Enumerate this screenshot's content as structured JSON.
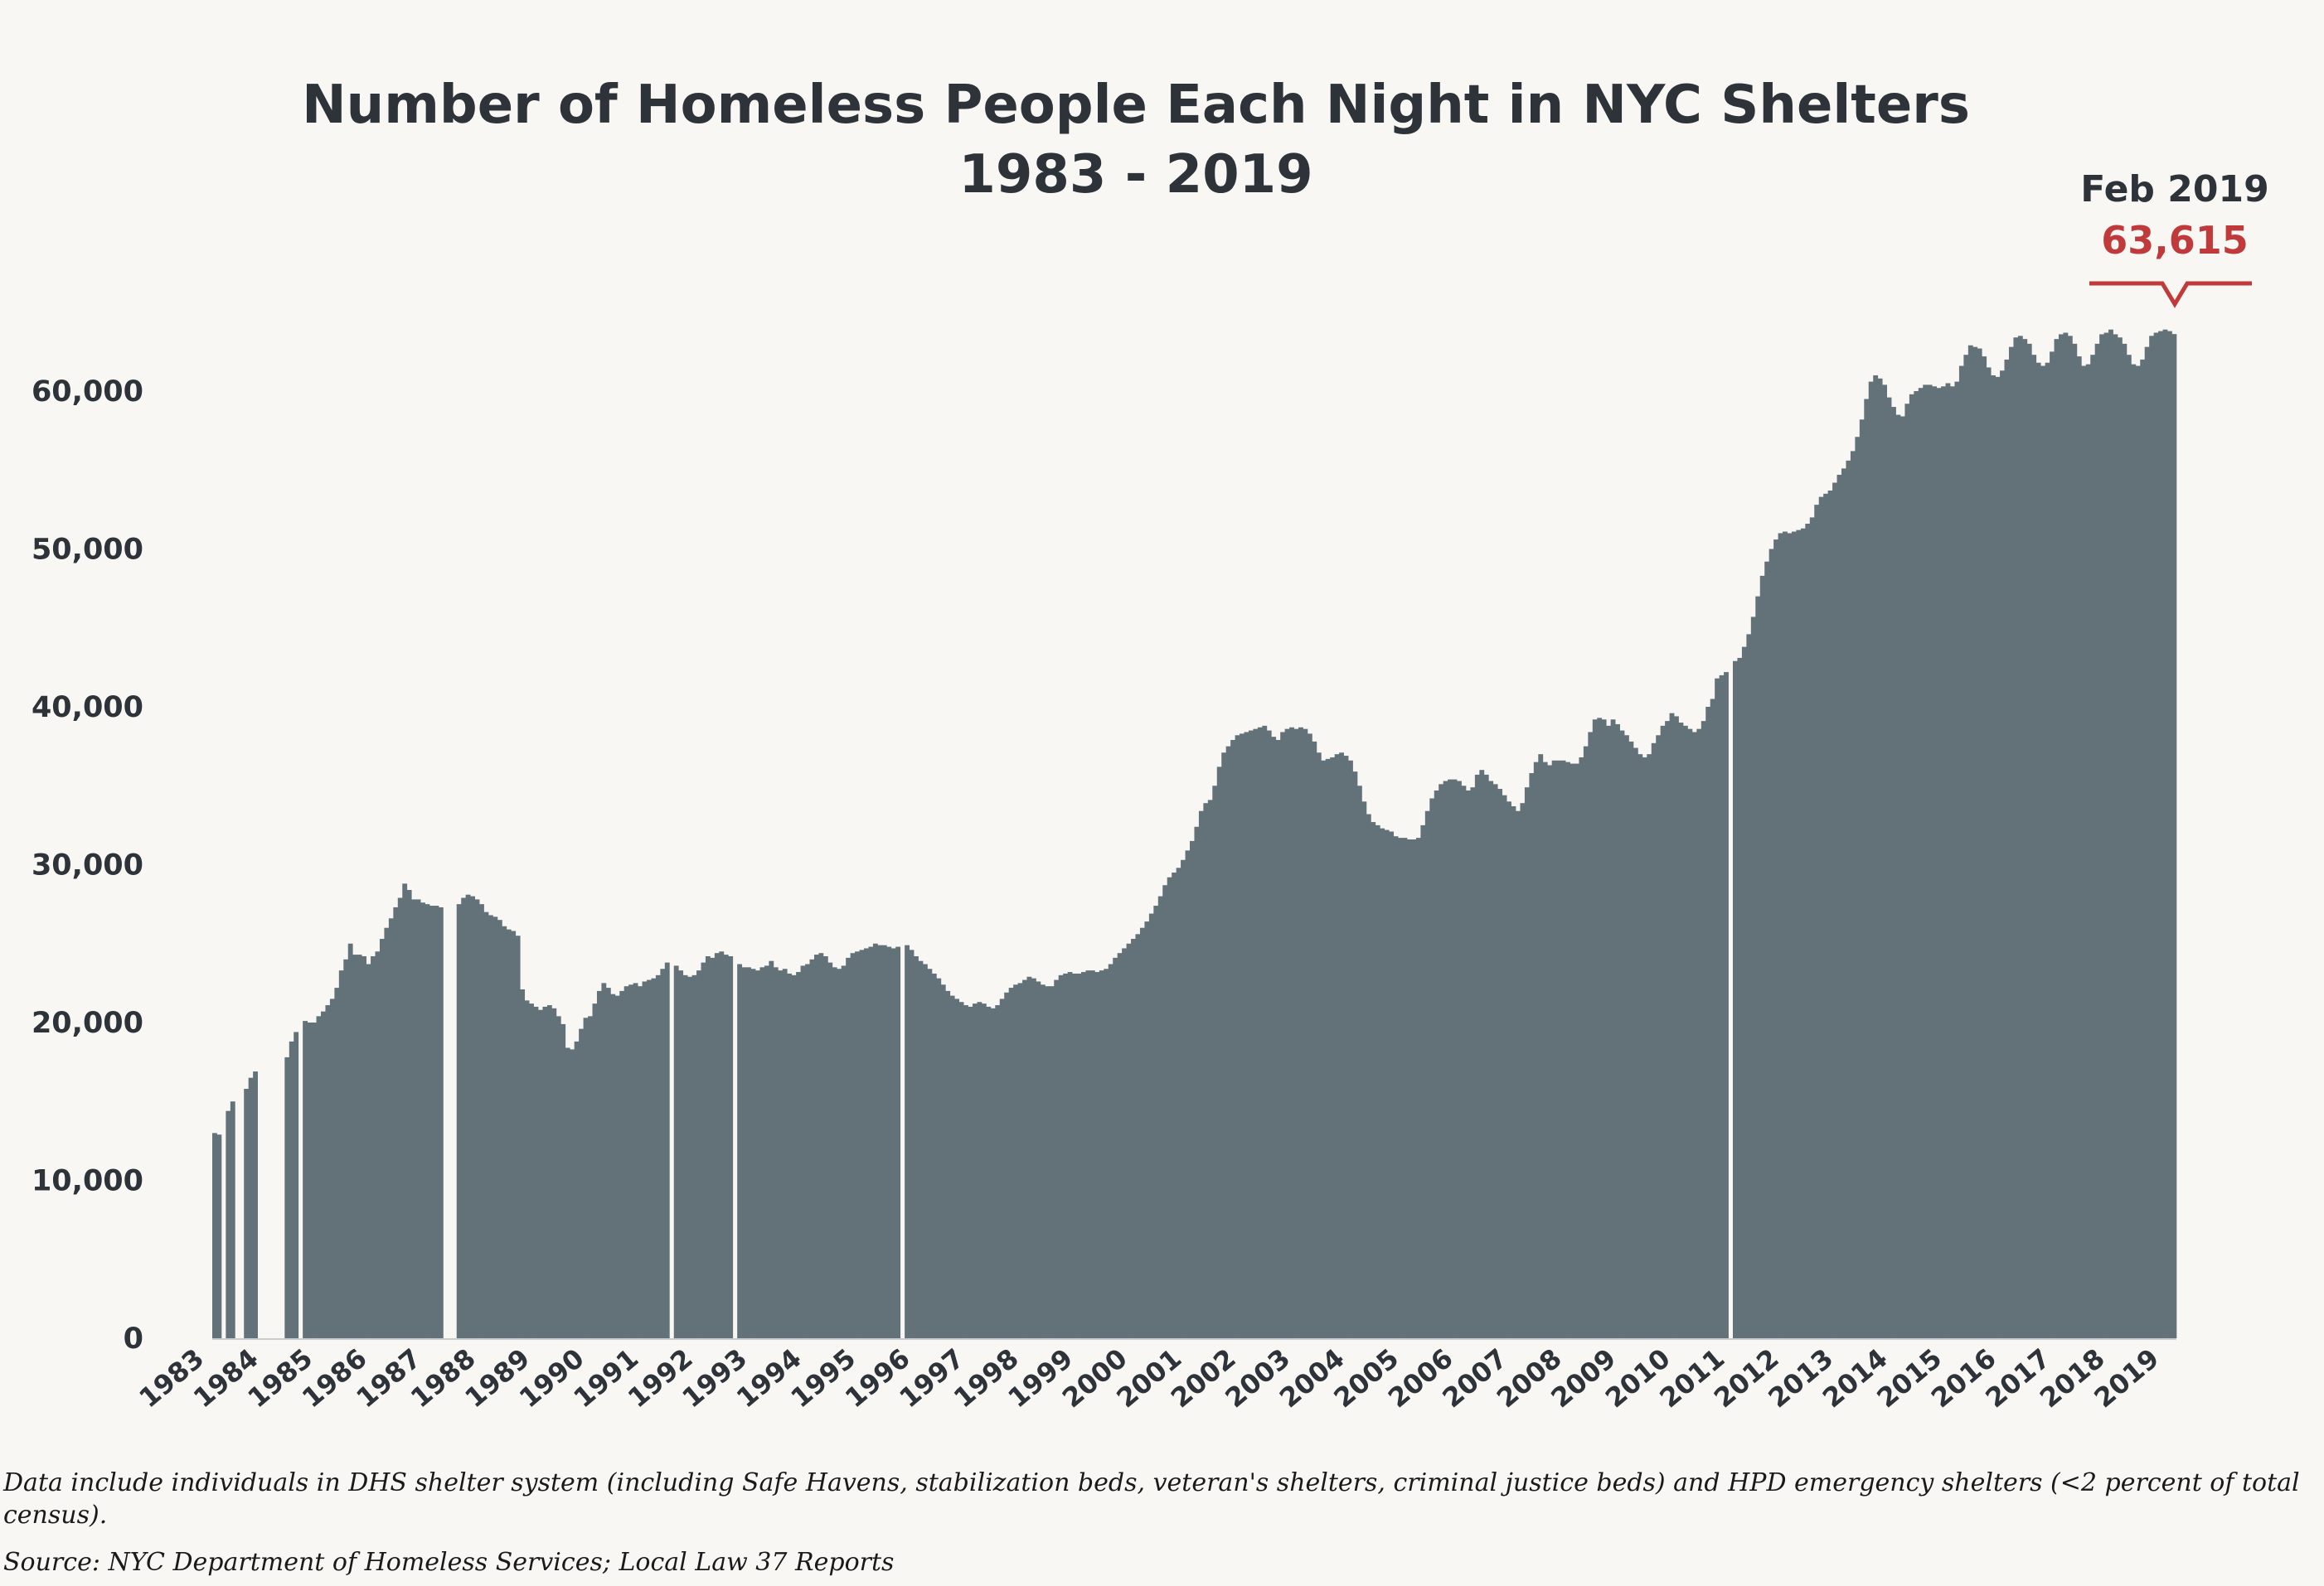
{
  "chart_data": {
    "type": "bar",
    "title": "Number of Homeless People Each Night in NYC Shelters",
    "subtitle": "1983 - 2019",
    "xlabel": "",
    "ylabel": "",
    "ylim": [
      0,
      65000
    ],
    "yticks": [
      0,
      10000,
      20000,
      30000,
      40000,
      50000,
      60000
    ],
    "ytick_labels": [
      "0",
      "10,000",
      "20,000",
      "30,000",
      "40,000",
      "50,000",
      "60,000"
    ],
    "xtick_labels": [
      "1983",
      "1984",
      "1985",
      "1986",
      "1987",
      "1988",
      "1989",
      "1990",
      "1991",
      "1992",
      "1993",
      "1994",
      "1995",
      "1996",
      "1997",
      "1998",
      "1999",
      "2000",
      "2001",
      "2002",
      "2003",
      "2004",
      "2005",
      "2006",
      "2007",
      "2008",
      "2009",
      "2010",
      "2011",
      "2012",
      "2013",
      "2014",
      "2015",
      "2016",
      "2017",
      "2018",
      "2019"
    ],
    "grid": false,
    "bar_color": "#637279",
    "frequency": "monthly",
    "monthly_values": {
      "1983": [
        13000,
        12900,
        null,
        14400,
        15000,
        null,
        null,
        15800,
        16500,
        16900,
        null,
        null
      ],
      "1984": [
        null,
        null,
        null,
        null,
        17800,
        18800,
        19400,
        null,
        20100,
        20000,
        20000,
        20400
      ],
      "1985": [
        20700,
        21100,
        21500,
        22200,
        23300,
        24000,
        25000,
        24300,
        24300,
        24200,
        23700,
        24200
      ],
      "1986": [
        24500,
        25300,
        26000,
        26600,
        27300,
        27900,
        28800,
        28400,
        27800,
        27800,
        27600,
        27500
      ],
      "1987": [
        27400,
        27400,
        27300,
        null,
        null,
        null,
        27500,
        27900,
        28100,
        28000,
        27800,
        27500
      ],
      "1988": [
        27000,
        26800,
        26700,
        26500,
        26100,
        25900,
        25800,
        25500,
        22100,
        21400,
        21200,
        21000
      ],
      "1989": [
        20800,
        21000,
        21100,
        20900,
        20400,
        19900,
        18400,
        18300,
        18800,
        19600,
        20300,
        20400
      ],
      "1990": [
        21200,
        22000,
        22500,
        22200,
        21800,
        21700,
        22000,
        22300,
        22400,
        22500,
        22300,
        22600
      ],
      "1991": [
        22700,
        22800,
        23000,
        23400,
        23800,
        null,
        23600,
        23300,
        23000,
        22900,
        23000,
        23300
      ],
      "1992": [
        23800,
        24200,
        24100,
        24400,
        24500,
        24300,
        24200,
        null,
        23700,
        23500,
        23500,
        23400
      ],
      "1993": [
        23300,
        23500,
        23600,
        23900,
        23500,
        23300,
        23400,
        23100,
        23000,
        23200,
        23600,
        23700
      ],
      "1994": [
        24000,
        24300,
        24400,
        24200,
        23800,
        23500,
        23400,
        23600,
        24100,
        24400,
        24500,
        24600
      ],
      "1995": [
        24700,
        24800,
        25000,
        24900,
        24900,
        24800,
        24700,
        24800,
        null,
        24900,
        24600,
        24200
      ],
      "1996": [
        23900,
        23700,
        23400,
        23100,
        22800,
        22400,
        22000,
        21700,
        21500,
        21300,
        21100,
        21000
      ],
      "1997": [
        21200,
        21300,
        21200,
        21000,
        20900,
        21100,
        21500,
        21900,
        22200,
        22400,
        22500,
        22700
      ],
      "1998": [
        22900,
        22800,
        22600,
        22400,
        22300,
        22300,
        22700,
        23000,
        23100,
        23200,
        23100,
        23100
      ],
      "1999": [
        23200,
        23300,
        23300,
        23200,
        23300,
        23400,
        23700,
        24100,
        24400,
        24700,
        25000,
        25300
      ],
      "2000": [
        25600,
        26000,
        26400,
        26900,
        27400,
        28000,
        28700,
        29200,
        29500,
        29800,
        30300,
        30900
      ],
      "2001": [
        31500,
        32400,
        33400,
        33900,
        34100,
        35000,
        36200,
        37100,
        37500,
        37900,
        38200,
        38300
      ],
      "2002": [
        38400,
        38500,
        38600,
        38700,
        38800,
        38500,
        38100,
        37900,
        38400,
        38600,
        38700,
        38600
      ],
      "2003": [
        38700,
        38600,
        38300,
        37800,
        37100,
        36600,
        36700,
        36800,
        37000,
        37100,
        36900,
        36600
      ],
      "2004": [
        35900,
        35000,
        34000,
        33200,
        32700,
        32500,
        32300,
        32200,
        32100,
        31800,
        31700,
        31700
      ],
      "2005": [
        31600,
        31600,
        31700,
        32500,
        33400,
        34200,
        34700,
        35100,
        35300,
        35400,
        35400,
        35300
      ],
      "2006": [
        35000,
        34700,
        34900,
        35700,
        36000,
        35700,
        35300,
        35100,
        34800,
        34400,
        34000,
        33700
      ],
      "2007": [
        33400,
        33900,
        34900,
        35800,
        36500,
        37000,
        36500,
        36300,
        36600,
        36600,
        36600,
        36500
      ],
      "2008": [
        36400,
        36400,
        36800,
        37500,
        38400,
        39200,
        39300,
        39200,
        38800,
        39200,
        38900,
        38500
      ],
      "2009": [
        38200,
        37800,
        37400,
        37000,
        36800,
        37000,
        37700,
        38200,
        38800,
        39100,
        39600,
        39400
      ],
      "2010": [
        39000,
        38800,
        38600,
        38400,
        38600,
        39100,
        40000,
        40500,
        41800,
        42000,
        42200,
        null
      ],
      "2011": [
        42900,
        43100,
        43800,
        44600,
        45700,
        47000,
        48300,
        49200,
        50000,
        50600,
        51000,
        51100
      ],
      "2012": [
        51000,
        51100,
        51200,
        51300,
        51600,
        52000,
        52800,
        53300,
        53500,
        53700,
        54200,
        54700
      ],
      "2013": [
        55100,
        55600,
        56200,
        57100,
        58200,
        59500,
        60600,
        61000,
        60800,
        60400,
        59600,
        59000
      ],
      "2014": [
        58500,
        58400,
        59200,
        59800,
        60000,
        60200,
        60400,
        60400,
        60300,
        60200,
        60300,
        60500
      ],
      "2015": [
        60300,
        60600,
        61600,
        62300,
        62900,
        62800,
        62700,
        62200,
        61500,
        61000,
        60900,
        61300
      ],
      "2016": [
        62000,
        62800,
        63400,
        63500,
        63300,
        63000,
        62300,
        61800,
        61600,
        61800,
        62500,
        63300
      ],
      "2017": [
        63600,
        63700,
        63500,
        63000,
        62200,
        61600,
        61700,
        62300,
        63000,
        63600,
        63700,
        63900
      ],
      "2018": [
        63600,
        63400,
        63000,
        62300,
        61700,
        61600,
        62000,
        62800,
        63500,
        63700,
        63800,
        63900
      ],
      "2019": [
        63800,
        63615
      ]
    },
    "annotation": {
      "label": "Feb 2019",
      "value": "63,615",
      "color": "#c0393b"
    }
  },
  "footnote": {
    "line1": "Data include individuals in DHS shelter system (including Safe Havens, stabilization beds, veteran's shelters, criminal justice beds) and HPD emergency shelters (<2 percent of total census).",
    "source": "Source:  NYC Department of Homeless Services; Local Law 37 Reports"
  }
}
